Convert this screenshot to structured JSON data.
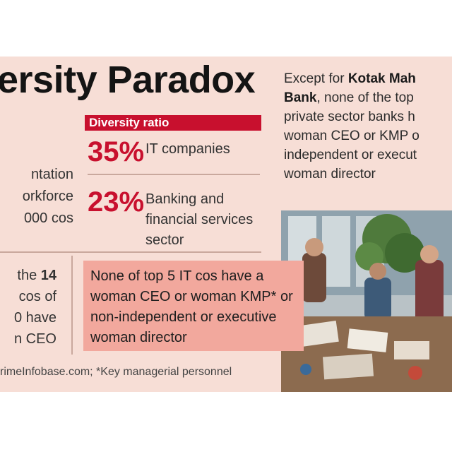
{
  "title": "ersity Paradox",
  "side_note": {
    "bold_1": "Kotak Mah",
    "prefix": "Except for ",
    "bold_2": "Bank",
    "rest": ", none of the top private sector banks h woman CEO or KMP o independent or execut woman director"
  },
  "diversity_ratio": {
    "label": "Diversity ratio",
    "stats": [
      {
        "value": "35%",
        "label": "IT companies"
      },
      {
        "value": "23%",
        "label": "Banking and financial services sector"
      }
    ]
  },
  "left_fragment": {
    "line1": "ntation",
    "line2": "orkforce",
    "line3": "000 cos"
  },
  "left_fragment_2": {
    "line1_prefix": "the ",
    "line1_num": "14",
    "line2": "cos of",
    "line3": "0 have",
    "line4": "n CEO"
  },
  "callout": {
    "text": "None of top 5 IT cos have a woman CEO or woman KMP* or non-independent or executive woman director"
  },
  "source": "rimeInfobase.com; *Key managerial personnel",
  "colors": {
    "accent": "#c8102e",
    "panel": "#f7ded6",
    "callout": "#f2a89d"
  },
  "icons": {
    "photo": "office-meeting-photo"
  }
}
